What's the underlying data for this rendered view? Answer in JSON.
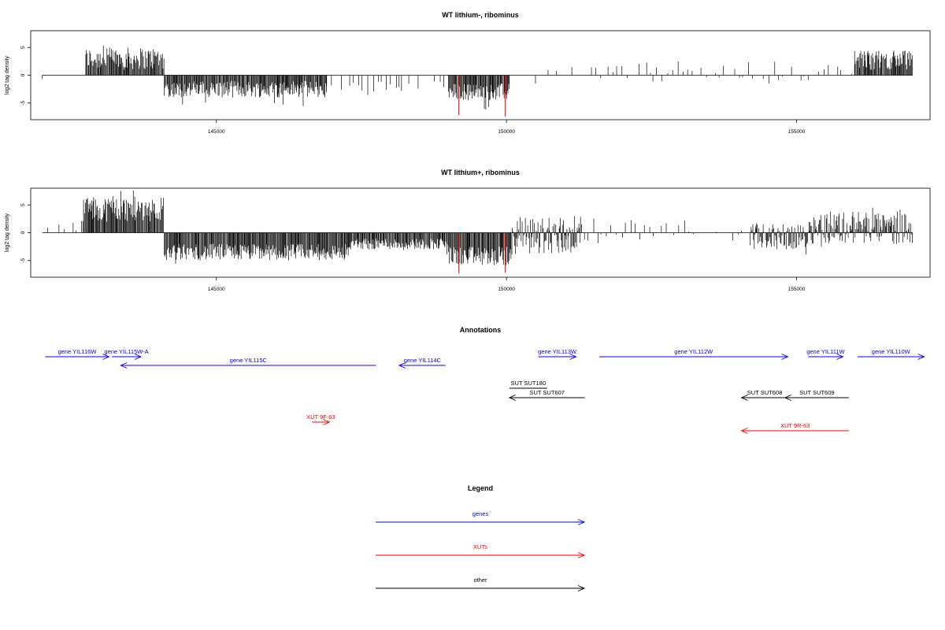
{
  "chart_data": [
    {
      "type": "bar",
      "title": "WT lithium-, ribominus",
      "xlabel": "",
      "ylabel": "log2 tag density",
      "xlim": [
        141800,
        157300
      ],
      "ylim": [
        -8,
        8
      ],
      "xticks": [
        145000,
        150000,
        155000
      ],
      "yticks": [
        -5,
        0,
        5
      ],
      "track_start": 142000,
      "track_end": 157000,
      "highlight_color": "#ff0000",
      "highlights": [
        {
          "x": 149180,
          "y": -7.2
        },
        {
          "x": 149980,
          "y": -7.4
        }
      ],
      "regions": [
        {
          "from": 142000,
          "to": 142050,
          "density": "sparse",
          "level": [
            -1,
            0
          ]
        },
        {
          "from": 142750,
          "to": 144100,
          "density": "dense",
          "level": [
            1,
            5
          ]
        },
        {
          "from": 144100,
          "to": 146900,
          "density": "dense",
          "level": [
            -4,
            -1
          ]
        },
        {
          "from": 146900,
          "to": 149000,
          "density": "sparse",
          "level": [
            -3,
            -1
          ]
        },
        {
          "from": 149000,
          "to": 150050,
          "density": "dense",
          "level": [
            -4.5,
            -1.5
          ]
        },
        {
          "from": 150500,
          "to": 151700,
          "density": "sparse",
          "level": [
            -2,
            2
          ]
        },
        {
          "from": 151700,
          "to": 155200,
          "density": "sparse",
          "level": [
            -1.5,
            2.5
          ]
        },
        {
          "from": 155200,
          "to": 156000,
          "density": "sparse",
          "level": [
            -1,
            2
          ]
        },
        {
          "from": 156000,
          "to": 157000,
          "density": "dense",
          "level": [
            1,
            4.5
          ]
        }
      ]
    },
    {
      "type": "bar",
      "title": "WT lithium+, ribominus",
      "xlabel": "",
      "ylabel": "log2 tag density",
      "xlim": [
        141800,
        157300
      ],
      "ylim": [
        -8,
        8
      ],
      "xticks": [
        145000,
        150000,
        155000
      ],
      "yticks": [
        -5,
        0,
        5
      ],
      "track_start": 142000,
      "track_end": 157000,
      "highlight_color": "#ff0000",
      "highlights": [
        {
          "x": 149180,
          "y": -7.3
        },
        {
          "x": 149980,
          "y": -7.2
        }
      ],
      "regions": [
        {
          "from": 142000,
          "to": 142700,
          "density": "sparse",
          "level": [
            -1,
            2.5
          ]
        },
        {
          "from": 142700,
          "to": 144100,
          "density": "dense",
          "level": [
            2,
            6.5
          ]
        },
        {
          "from": 144100,
          "to": 147300,
          "density": "dense",
          "level": [
            -5,
            -2
          ]
        },
        {
          "from": 147300,
          "to": 149000,
          "density": "dense",
          "level": [
            -3,
            -1
          ]
        },
        {
          "from": 149000,
          "to": 150100,
          "density": "dense",
          "level": [
            -6,
            -2.5
          ]
        },
        {
          "from": 150100,
          "to": 151300,
          "density": "dense",
          "level": [
            -4,
            3
          ]
        },
        {
          "from": 151300,
          "to": 154200,
          "density": "sparse",
          "level": [
            -1.5,
            2.5
          ]
        },
        {
          "from": 154200,
          "to": 155200,
          "density": "dense",
          "level": [
            -3,
            1.5
          ]
        },
        {
          "from": 155200,
          "to": 156200,
          "density": "dense",
          "level": [
            -2,
            4
          ]
        },
        {
          "from": 156200,
          "to": 157000,
          "density": "dense",
          "level": [
            -2,
            3.5
          ]
        }
      ]
    }
  ],
  "annotations": {
    "title": "Annotations",
    "features": [
      {
        "label": "gene YIL116W",
        "start": 142050,
        "end": 143150,
        "dir": "right",
        "color": "#0000ff",
        "row": 0
      },
      {
        "label": "gene YIL115W-A",
        "start": 143200,
        "end": 143700,
        "dir": "right",
        "color": "#0000ff",
        "row": 0
      },
      {
        "label": "gene YIL115C",
        "start": 143350,
        "end": 147750,
        "dir": "left",
        "color": "#0000ff",
        "row": 1
      },
      {
        "label": "gene YIL114C",
        "start": 148150,
        "end": 148950,
        "dir": "left",
        "color": "#0000ff",
        "row": 1
      },
      {
        "label": "gene YIL113W",
        "start": 150550,
        "end": 151200,
        "dir": "right",
        "color": "#0000ff",
        "row": 0
      },
      {
        "label": "gene YIL112W",
        "start": 151600,
        "end": 154850,
        "dir": "right",
        "color": "#0000ff",
        "row": 0
      },
      {
        "label": "gene YIL111W",
        "start": 155200,
        "end": 155800,
        "dir": "right",
        "color": "#0000ff",
        "row": 0
      },
      {
        "label": "gene YIL110W",
        "start": 156050,
        "end": 157200,
        "dir": "right",
        "color": "#0000ff",
        "row": 0
      },
      {
        "label": "SUT SUT180",
        "start": 150050,
        "end": 150700,
        "dir": "none",
        "color": "#000000",
        "row": 2
      },
      {
        "label": "SUT SUT607",
        "start": 150050,
        "end": 151350,
        "dir": "left",
        "color": "#000000",
        "row": 3
      },
      {
        "label": "SUT SUT608",
        "start": 154050,
        "end": 154850,
        "dir": "left",
        "color": "#000000",
        "row": 3
      },
      {
        "label": "SUT SUT609",
        "start": 154800,
        "end": 155900,
        "dir": "left",
        "color": "#000000",
        "row": 3
      },
      {
        "label": "XUT 9F-63",
        "start": 146650,
        "end": 146950,
        "dir": "right",
        "color": "#ff0000",
        "row": 4
      },
      {
        "label": "XUT 9R-63",
        "start": 154050,
        "end": 155900,
        "dir": "left",
        "color": "#ff0000",
        "row": 5
      }
    ]
  },
  "legend": {
    "title": "Legend",
    "items": [
      {
        "label": "genes",
        "color": "#0000ff"
      },
      {
        "label": "XUTs",
        "color": "#ff0000"
      },
      {
        "label": "other",
        "color": "#000000"
      }
    ]
  }
}
